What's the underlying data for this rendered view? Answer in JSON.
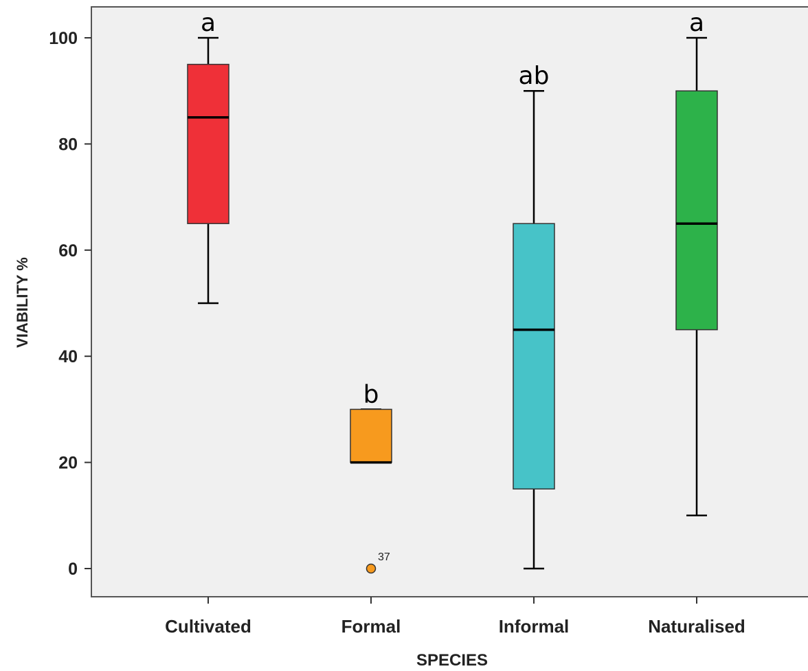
{
  "chart_data": {
    "type": "box",
    "xlabel": "SPECIES",
    "ylabel": "VIABILITY %",
    "ylim": [
      -5,
      105
    ],
    "yticks": [
      0,
      20,
      40,
      60,
      80,
      100
    ],
    "grid": false,
    "categories": [
      "Cultivated",
      "Formal",
      "Informal",
      "Naturalised"
    ],
    "boxes": [
      {
        "category": "Cultivated",
        "whisker_low": 50,
        "q1": 65,
        "median": 85,
        "q3": 95,
        "whisker_high": 100,
        "color": "#ef3038",
        "letters": "a"
      },
      {
        "category": "Formal",
        "whisker_low": 20,
        "q1": 20,
        "median": 20,
        "q3": 30,
        "whisker_high": 30,
        "color": "#f79a1e",
        "letters": "b",
        "outliers": [
          {
            "value": 0,
            "label": "37"
          }
        ]
      },
      {
        "category": "Informal",
        "whisker_low": 0,
        "q1": 15,
        "median": 45,
        "q3": 65,
        "whisker_high": 90,
        "color": "#47c3c8",
        "letters": "ab"
      },
      {
        "category": "Naturalised",
        "whisker_low": 10,
        "q1": 45,
        "median": 65,
        "q3": 90,
        "whisker_high": 100,
        "color": "#2db24a",
        "letters": "a"
      }
    ]
  }
}
